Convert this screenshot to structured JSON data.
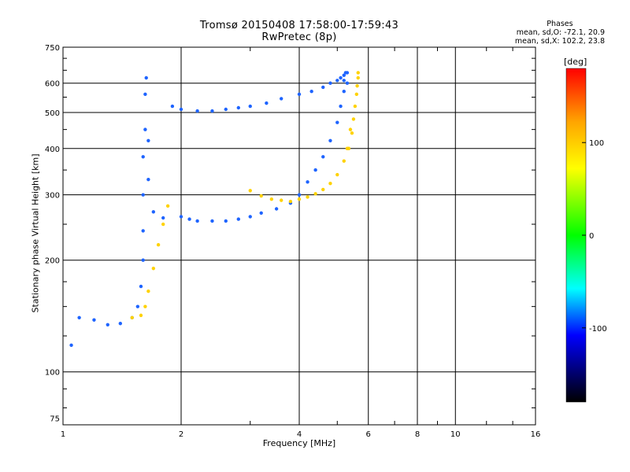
{
  "header": {
    "title": "Tromsø 20150408 17:58:00-17:59:43",
    "subtitle": "RwPretec (8p)",
    "phase_title": "Phases",
    "phase_stats_o": "mean, sd,O: -72.1, 20.9",
    "phase_stats_x": "mean, sd,X: 102.2, 23.8"
  },
  "chart_data": {
    "type": "scatter",
    "title": "Tromsø 20150408 17:58:00-17:59:43",
    "subtitle": "RwPretec (8p)",
    "xlabel": "Frequency [MHz]",
    "ylabel": "Stationary phase Virtual Height [km]",
    "x_scale": "log",
    "y_scale": "log",
    "xlim": [
      1,
      16
    ],
    "ylim": [
      72,
      750
    ],
    "x_ticks": [
      1,
      2,
      4,
      6,
      8,
      10,
      16
    ],
    "x_tick_labels": [
      "1",
      "2",
      "4",
      "6",
      "8",
      "10",
      "16"
    ],
    "y_ticks": [
      75,
      100,
      200,
      300,
      400,
      500,
      600,
      750
    ],
    "y_tick_labels": [
      "75",
      "100",
      "200",
      "300",
      "400",
      "500",
      "600",
      "750"
    ],
    "grid": true,
    "colorbar": {
      "label": "[deg]",
      "range": [
        -180,
        180
      ],
      "ticks": [
        100,
        0,
        -100
      ],
      "tick_labels": [
        "100",
        "0",
        "-100"
      ],
      "colors": [
        "#ff0000",
        "#ffa500",
        "#ffff00",
        "#00ff00",
        "#00ffff",
        "#0000ff",
        "#000000"
      ]
    },
    "series": [
      {
        "name": "O",
        "color": "#1e64ff",
        "x": [
          1.05,
          1.1,
          1.2,
          1.3,
          1.4,
          1.5,
          1.55,
          1.58,
          1.6,
          1.6,
          1.6,
          1.6,
          1.62,
          1.62,
          1.63,
          1.65,
          1.65,
          1.7,
          1.8,
          2.0,
          2.1,
          2.2,
          2.4,
          2.6,
          2.8,
          3.0,
          3.2,
          3.5,
          3.8,
          4.0,
          4.2,
          4.4,
          4.6,
          4.8,
          5.0,
          5.1,
          5.2,
          5.2,
          5.25,
          5.3,
          1.9,
          2.0,
          2.2,
          2.4,
          2.6,
          2.8,
          3.0,
          3.3,
          3.6,
          4.0,
          4.3,
          4.6,
          4.8,
          5.0,
          5.1,
          5.2,
          5.3
        ],
        "y": [
          118,
          140,
          138,
          134,
          135,
          140,
          150,
          170,
          200,
          240,
          300,
          380,
          450,
          560,
          620,
          420,
          330,
          270,
          260,
          262,
          258,
          255,
          255,
          255,
          258,
          262,
          268,
          275,
          285,
          300,
          325,
          350,
          380,
          420,
          470,
          520,
          570,
          610,
          640,
          600,
          520,
          510,
          505,
          505,
          510,
          515,
          520,
          530,
          545,
          560,
          570,
          585,
          600,
          610,
          620,
          630,
          640
        ]
      },
      {
        "name": "X",
        "color": "#ffd200",
        "x": [
          1.5,
          1.58,
          1.62,
          1.65,
          1.7,
          1.75,
          1.8,
          1.85,
          3.0,
          3.2,
          3.4,
          3.6,
          3.8,
          4.0,
          4.2,
          4.4,
          4.6,
          4.8,
          5.0,
          5.2,
          5.35,
          5.45,
          5.5,
          5.55,
          5.6,
          5.62,
          5.65,
          5.65,
          5.3,
          5.4
        ],
        "y": [
          140,
          142,
          150,
          165,
          190,
          220,
          250,
          280,
          308,
          298,
          292,
          290,
          288,
          292,
          296,
          302,
          310,
          322,
          340,
          370,
          400,
          440,
          480,
          520,
          560,
          590,
          620,
          640,
          400,
          450
        ]
      }
    ]
  }
}
